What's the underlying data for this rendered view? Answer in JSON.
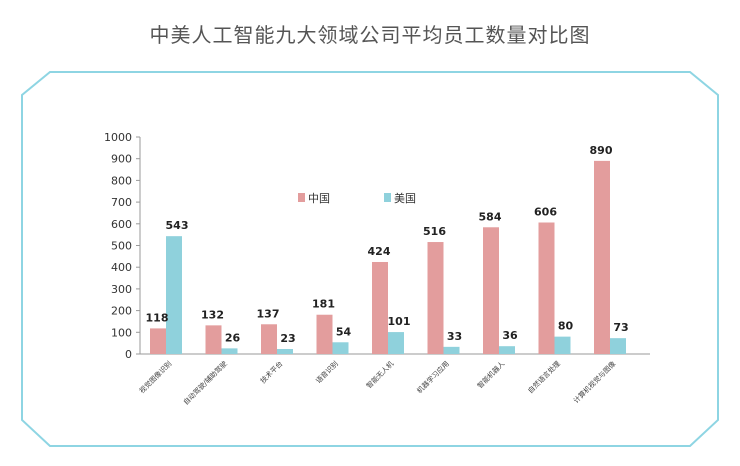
{
  "chart_data": {
    "type": "bar",
    "title": "中美人工智能九大领域公司平均员工数量对比图",
    "categories": [
      "视觉图像识别",
      "自动驾驶/辅助驾驶",
      "技术平台",
      "语音识别",
      "智能无人机",
      "机器学习应用",
      "智能机器人",
      "自然语言处理",
      "计算机视觉与图像"
    ],
    "series": [
      {
        "name": "中国",
        "values": [
          118,
          132,
          137,
          181,
          424,
          516,
          584,
          606,
          890
        ],
        "color": "#e39d9d"
      },
      {
        "name": "美国",
        "values": [
          543,
          26,
          23,
          54,
          101,
          33,
          36,
          80,
          73
        ],
        "color": "#8fd1dc"
      }
    ],
    "ylim": [
      0,
      1000
    ],
    "yticks": [
      "0",
      "100",
      "200",
      "300",
      "400",
      "500",
      "600",
      "700",
      "800",
      "900",
      "1000"
    ],
    "legend_position": "top-center",
    "grid": false,
    "frame_color": "#8ed5e3"
  }
}
